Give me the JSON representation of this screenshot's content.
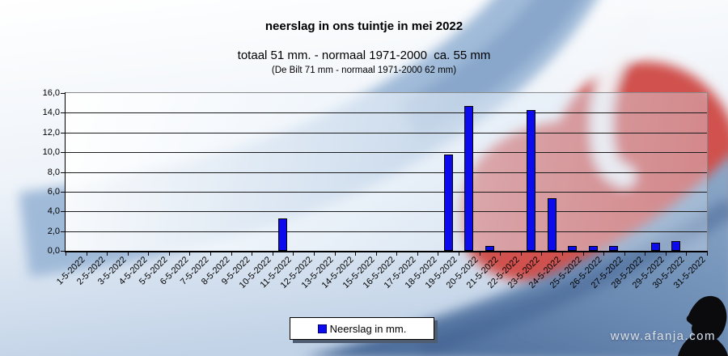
{
  "header": {
    "title": "neerslag in ons tuintje in mei 2022",
    "subtitle": "totaal 51 mm. - normaal 1971-2000  ca. 55 mm",
    "note": "(De Bilt 71 mm - normaal 1971-2000 62 mm)"
  },
  "legend": {
    "label": "Neerslag in mm."
  },
  "watermark": "www.afanja.com",
  "colors": {
    "bar": "#0b0bee",
    "bar_border": "#000000",
    "heart_red": "#d0514d",
    "swoosh_blue": "#9cb7d7",
    "corner_blue_dark": "#4a6a98",
    "plot_grid": "#1d1d1d"
  },
  "chart_data": {
    "type": "bar",
    "title": "neerslag in ons tuintje in mei 2022",
    "subtitle": "totaal 51 mm. - normaal 1971-2000  ca. 55 mm",
    "note": "(De Bilt 71 mm - normaal 1971-2000 62 mm)",
    "series_name": "Neerslag in mm.",
    "categories": [
      "1-5-2022",
      "2-5-2022",
      "3-5-2022",
      "4-5-2022",
      "5-5-2022",
      "6-5-2022",
      "7-5-2022",
      "8-5-2022",
      "9-5-2022",
      "10-5-2022",
      "11-5-2022",
      "12-5-2022",
      "13-5-2022",
      "14-5-2022",
      "15-5-2022",
      "16-5-2022",
      "17-5-2022",
      "18-5-2022",
      "19-5-2022",
      "20-5-2022",
      "21-5-2022",
      "22-5-2022",
      "23-5-2022",
      "24-5-2022",
      "25-5-2022",
      "26-5-2022",
      "27-5-2022",
      "28-5-2022",
      "29-5-2022",
      "30-5-2022",
      "31-5-2022"
    ],
    "values": [
      0,
      0,
      0,
      0,
      0,
      0,
      0,
      0,
      0,
      0,
      3.3,
      0,
      0,
      0,
      0,
      0,
      0,
      0,
      9.8,
      14.7,
      0.5,
      0,
      14.3,
      5.3,
      0.5,
      0.5,
      0.5,
      0,
      0.8,
      1.0,
      0
    ],
    "xlabel": "",
    "ylabel": "",
    "ylim": [
      0,
      16
    ],
    "ytick_step": 2,
    "decimal_separator": ",",
    "grid": true,
    "legend_position": "bottom"
  }
}
